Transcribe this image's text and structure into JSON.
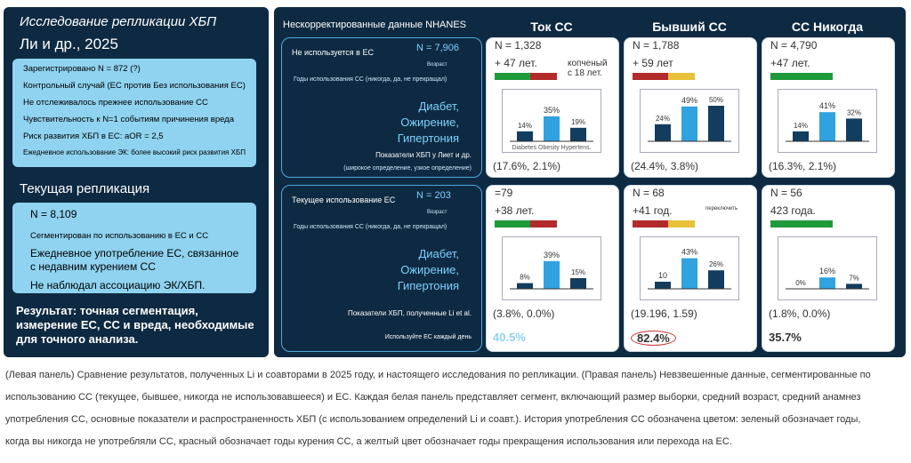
{
  "left_panel": {
    "title": "Исследование репликации ХБП",
    "authors": "Ли и др., 2025",
    "study_box": {
      "items": [
        "Зарегистрировано N = 872 (?)",
        "Контрольный случай (ЕС против Без использования ЕС)",
        "Не отслеживалось прежнее использование СС",
        "Чувствительность к N=1 событиям причинения вреда",
        "Риск развития ХБП в ЕС: aOR = 2,5",
        "Ежедневное использование ЭК: более высокий риск развития ХБП"
      ]
    },
    "replication_title": "Текущая репликация",
    "replication_box": {
      "items": [
        "N = 8,109",
        "Сегментирован по использованию в ЕС и СС",
        "Ежедневное употребление ЕС, связанное с недавним курением СС",
        "Не наблюдал ассоциацию ЭК/ХБП."
      ]
    },
    "result": "Результат: точная сегментация, измерение ЕС, СС и вреда, необходимые для точного анализа."
  },
  "right_panel": {
    "header": "Нескорректированные данные NHANES",
    "columns": [
      "Ток СС",
      "Бывший СС",
      "СС Никогда"
    ],
    "rows": [
      {
        "label_box": {
          "title": "Не используется в ЕС",
          "n": "N = 7,906",
          "age": "Возраст",
          "years": "Годы использования СС (никогда, да, не прекращал)",
          "conditions": [
            "Диабет,",
            "Ожирение,",
            "Гипертония"
          ],
          "ckd": "Показатели ХБП у Лиет и др.",
          "ckd_note": "(широкое определение, узкое определение)"
        },
        "cards": [
          {
            "n": "N = 1,328",
            "age": "+ 47 лет.",
            "note": "копченый с 18 лет.",
            "bars": {
              "values": [
                14,
                35,
                19
              ],
              "value_labels": [
                "14%",
                "35%",
                "19%"
              ]
            },
            "bar_caption": "Diabetes Obesity Hypertens.",
            "result": "(17.6%, 2.1%)"
          },
          {
            "n": "N = 1,788",
            "age": "+ 59 лет",
            "bars": {
              "values": [
                24,
                49,
                50
              ],
              "value_labels": [
                "24%",
                "49%",
                "50%"
              ]
            },
            "result": "(24.4%, 3.8%)"
          },
          {
            "n": "N = 4,790",
            "age": "+47 лет.",
            "bars": {
              "values": [
                14,
                41,
                32
              ],
              "value_labels": [
                "14%",
                "41%",
                "32%"
              ]
            },
            "result": "(16.3%, 2.1%)"
          }
        ]
      },
      {
        "label_box": {
          "title": "Текущее использование ЕС",
          "n": "N = 203",
          "age": "Возраст",
          "years": "Годы использования СС (никогда, да, не прекращал)",
          "conditions": [
            "Диабет,",
            "Ожирение,",
            "Гипертония"
          ],
          "ckd": "Показатели ХБП, полученные Li et al.",
          "footer": "Используйте ЕС каждый день"
        },
        "cards": [
          {
            "n": "=79",
            "age": "+38 лет.",
            "bars": {
              "values": [
                8,
                39,
                15
              ],
              "value_labels": [
                "8%",
                "39%",
                "15%"
              ]
            },
            "result": "(3.8%, 0.0%)",
            "share": "40.5%"
          },
          {
            "n": "N = 68",
            "age": "+41 год.",
            "note": "переключить",
            "bars": {
              "values": [
                10,
                43,
                26
              ],
              "value_labels": [
                "10",
                "43%",
                "26%"
              ]
            },
            "result": "(19.196, 1.59)",
            "share": "82.4%"
          },
          {
            "n": "N = 56",
            "age": "423 года.",
            "bars": {
              "values": [
                0,
                16,
                7
              ],
              "value_labels": [
                "0%",
                "16%",
                "7%"
              ]
            },
            "result": "(1.8%, 0.0%)",
            "share": "35.7%"
          }
        ]
      }
    ]
  },
  "caption": {
    "lines": [
      "(Левая панель) Сравнение результатов, полученных Li и соавторами в 2025 году, и настоящего исследования по репликации. (Правая панель) Невзвешенные данные, сегментированные по",
      "использованию СС (текущее, бывшее, никогда не использовавшееся) и ЕС. Каждая белая панель представляет сегмент, включающий размер выборки, средний возраст, средний анамнез",
      "употребления СС, основные показатели и распространенность ХБП (с использованием определений Li и соавт.). История употребления СС обозначена цветом: зеленый обозначает годы,",
      "когда вы никогда не употребляли СС, красный обозначает годы курения СС, а желтый цвет обозначает годы прекращения использования или перехода на ЕС."
    ]
  }
}
